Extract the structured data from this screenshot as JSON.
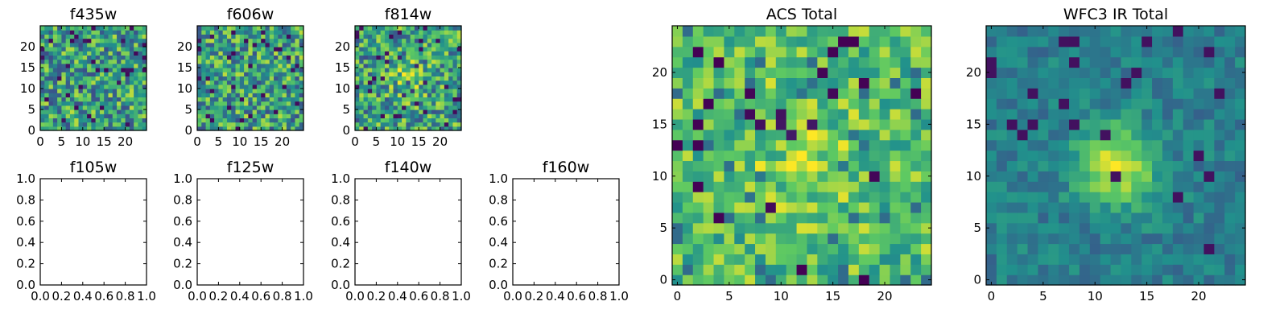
{
  "figure": {
    "background": "#ffffff"
  },
  "chart_data": [
    {
      "id": "f435w",
      "type": "heatmap",
      "title": "f435w",
      "xticks": [
        "0",
        "5",
        "10",
        "15",
        "20"
      ],
      "yticks": [
        "0",
        "5",
        "10",
        "15",
        "20"
      ],
      "xlim": [
        0,
        25
      ],
      "ylim": [
        0,
        25
      ],
      "grid": false,
      "cells": 25,
      "seed": 11,
      "pattern": "noise"
    },
    {
      "id": "f606w",
      "type": "heatmap",
      "title": "f606w",
      "xticks": [
        "0",
        "5",
        "10",
        "15",
        "20"
      ],
      "yticks": [
        "0",
        "5",
        "10",
        "15",
        "20"
      ],
      "xlim": [
        0,
        25
      ],
      "ylim": [
        0,
        25
      ],
      "grid": false,
      "cells": 25,
      "seed": 23,
      "pattern": "noise"
    },
    {
      "id": "f814w",
      "type": "heatmap",
      "title": "f814w",
      "xticks": [
        "0",
        "5",
        "10",
        "15",
        "20"
      ],
      "yticks": [
        "0",
        "5",
        "10",
        "15",
        "20"
      ],
      "xlim": [
        0,
        25
      ],
      "ylim": [
        0,
        25
      ],
      "grid": false,
      "cells": 25,
      "seed": 37,
      "pattern": "noise_bright_center"
    },
    {
      "id": "f105w",
      "type": "empty",
      "title": "f105w",
      "xticks": [
        "0.0",
        "0.2",
        "0.4",
        "0.6",
        "0.8",
        "1.0"
      ],
      "yticks": [
        "0.0",
        "0.2",
        "0.4",
        "0.6",
        "0.8",
        "1.0"
      ],
      "xlim": [
        0,
        1
      ],
      "ylim": [
        0,
        1
      ]
    },
    {
      "id": "f125w",
      "type": "empty",
      "title": "f125w",
      "xticks": [
        "0.0",
        "0.2",
        "0.4",
        "0.6",
        "0.8",
        "1.0"
      ],
      "yticks": [
        "0.0",
        "0.2",
        "0.4",
        "0.6",
        "0.8",
        "1.0"
      ],
      "xlim": [
        0,
        1
      ],
      "ylim": [
        0,
        1
      ]
    },
    {
      "id": "f140w",
      "type": "empty",
      "title": "f140w",
      "xticks": [
        "0.0",
        "0.2",
        "0.4",
        "0.6",
        "0.8",
        "1.0"
      ],
      "yticks": [
        "0.0",
        "0.2",
        "0.4",
        "0.6",
        "0.8",
        "1.0"
      ],
      "xlim": [
        0,
        1
      ],
      "ylim": [
        0,
        1
      ]
    },
    {
      "id": "f160w",
      "type": "empty",
      "title": "f160w",
      "xticks": [
        "0.0",
        "0.2",
        "0.4",
        "0.6",
        "0.8",
        "1.0"
      ],
      "yticks": [
        "0.0",
        "0.2",
        "0.4",
        "0.6",
        "0.8",
        "1.0"
      ],
      "xlim": [
        0,
        1
      ],
      "ylim": [
        0,
        1
      ]
    },
    {
      "id": "acs-total",
      "type": "heatmap",
      "title": "ACS Total",
      "xticks": [
        "0",
        "5",
        "10",
        "15",
        "20"
      ],
      "yticks": [
        "0",
        "5",
        "10",
        "15",
        "20"
      ],
      "xlim": [
        -0.5,
        24.5
      ],
      "ylim": [
        -0.5,
        24.5
      ],
      "grid": false,
      "cells": 25,
      "seed": 101,
      "pattern": "acs"
    },
    {
      "id": "wfc3-ir-total",
      "type": "heatmap",
      "title": "WFC3 IR Total",
      "xticks": [
        "0",
        "5",
        "10",
        "15",
        "20"
      ],
      "yticks": [
        "0",
        "5",
        "10",
        "15",
        "20"
      ],
      "xlim": [
        -0.5,
        24.5
      ],
      "ylim": [
        -0.5,
        24.5
      ],
      "grid": false,
      "cells": 25,
      "seed": 202,
      "pattern": "source",
      "source_center": [
        12,
        11
      ]
    }
  ],
  "colormap": [
    "#440154",
    "#3b528b",
    "#21918c",
    "#5ec962",
    "#fde725"
  ]
}
